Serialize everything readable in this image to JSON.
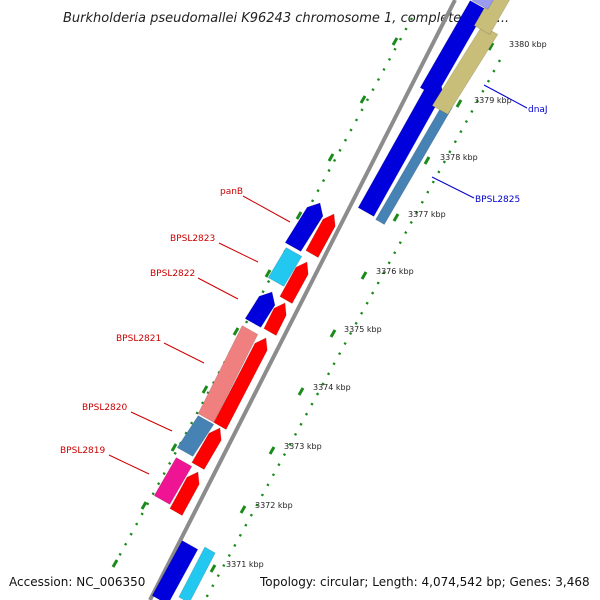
{
  "map": {
    "title": "Burkholderia pseudomallei K96243 chromosome 1, complete sequ...",
    "accession": "Accession: NC_006350",
    "summary": "Topology: circular; Length: 4,074,542 bp; Genes: 3,468",
    "colors": {
      "backbone": "#8c8c8c",
      "tick_dots": "#1a8a1a",
      "label_left": "#cc0000",
      "label_right": "#0000cc",
      "gene_blue": "#0000dd",
      "gene_red": "#ff0000",
      "gene_cyan": "#22c8f0",
      "gene_pink": "#f08080",
      "gene_steel": "#4682b4",
      "gene_magenta": "#ee1493",
      "gene_khaki": "#c8be7a"
    }
  },
  "ruler_labels": [
    "3380 kbp",
    "3379 kbp",
    "3378 kbp",
    "3377 kbp",
    "3376 kbp",
    "3375 kbp",
    "3374 kbp",
    "3373 kbp",
    "3372 kbp",
    "3371 kbp"
  ],
  "left_genes": [
    "panB",
    "BPSL2823",
    "BPSL2822",
    "BPSL2821",
    "BPSL2820",
    "BPSL2819"
  ],
  "right_genes": [
    "dnaJ",
    "BPSL2825"
  ]
}
